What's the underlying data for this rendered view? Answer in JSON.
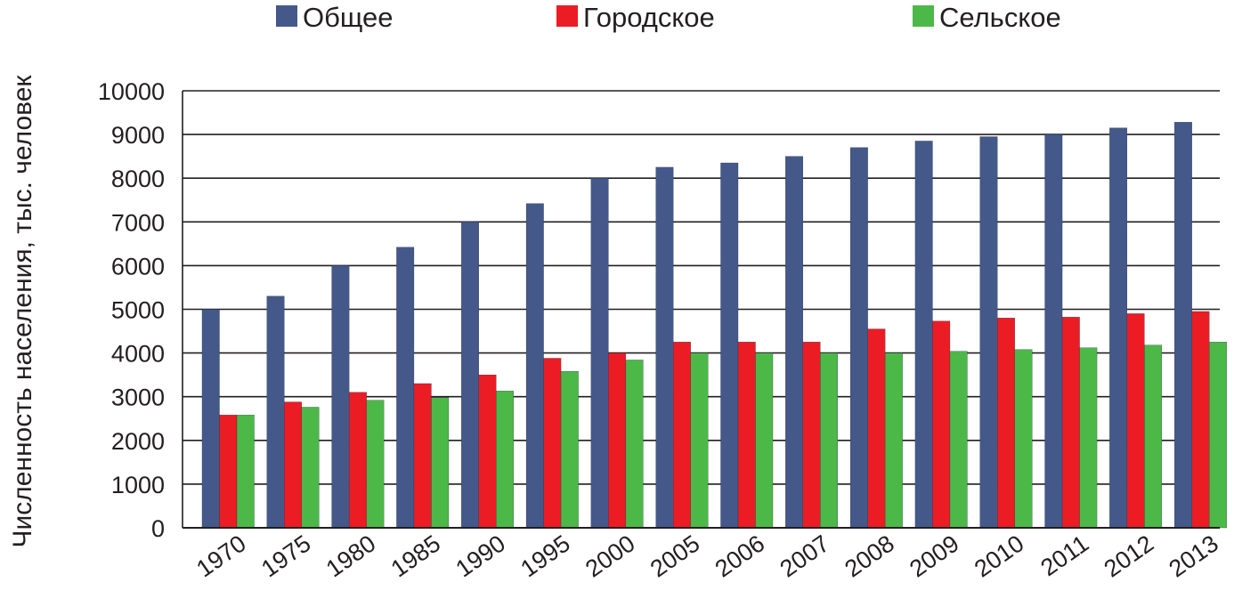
{
  "chart_data": {
    "type": "bar",
    "title": "",
    "xlabel": "",
    "ylabel": "Численность населения, тыс. человек",
    "ylim": [
      0,
      10000
    ],
    "yticks": [
      0,
      1000,
      2000,
      3000,
      4000,
      5000,
      6000,
      7000,
      8000,
      9000,
      10000
    ],
    "grid": true,
    "legend_position": "top",
    "categories": [
      "1970",
      "1975",
      "1980",
      "1985",
      "1990",
      "1995",
      "2000",
      "2005",
      "2006",
      "2007",
      "2008",
      "2009",
      "2010",
      "2011",
      "2012",
      "2013"
    ],
    "series": [
      {
        "name": "Общее",
        "color": "#44598a",
        "values": [
          5000,
          5300,
          6000,
          6420,
          7000,
          7420,
          8000,
          8250,
          8350,
          8500,
          8700,
          8850,
          8950,
          9000,
          9150,
          9280
        ]
      },
      {
        "name": "Городское",
        "color": "#ec1c24",
        "values": [
          2580,
          2880,
          3100,
          3300,
          3500,
          3880,
          4000,
          4250,
          4250,
          4250,
          4550,
          4730,
          4800,
          4820,
          4900,
          4950
        ]
      },
      {
        "name": "Сельское",
        "color": "#4cb848",
        "values": [
          2580,
          2760,
          2920,
          2980,
          3130,
          3580,
          3840,
          4000,
          4000,
          4000,
          4000,
          4040,
          4080,
          4120,
          4180,
          4250
        ]
      }
    ]
  }
}
